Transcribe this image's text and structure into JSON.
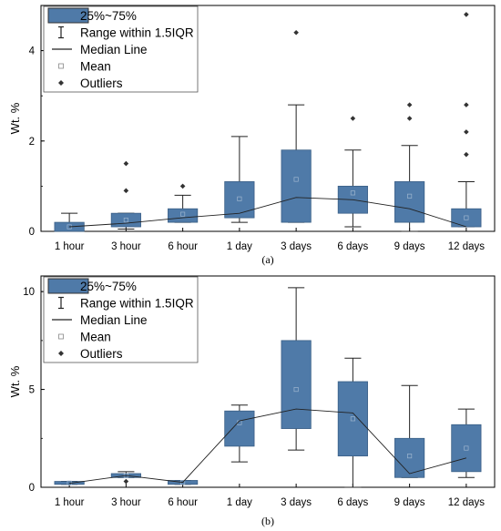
{
  "chart_data": [
    {
      "type": "box",
      "caption": "(a)",
      "ylabel": "Wt. %",
      "ylim": [
        0,
        5
      ],
      "yticks": [
        0,
        2,
        4
      ],
      "categories": [
        "1 hour",
        "3 hour",
        "6 hour",
        "1 day",
        "3 days",
        "6 days",
        "9 days",
        "12 days"
      ],
      "boxes": [
        {
          "q1": 0.0,
          "q3": 0.2,
          "whisker_low": 0.0,
          "whisker_high": 0.4,
          "median": 0.1,
          "mean": 0.1,
          "outliers": []
        },
        {
          "q1": 0.1,
          "q3": 0.4,
          "whisker_low": 0.05,
          "whisker_high": 0.4,
          "median": 0.18,
          "mean": 0.25,
          "outliers": [
            0.9,
            1.5
          ]
        },
        {
          "q1": 0.2,
          "q3": 0.5,
          "whisker_low": 0.2,
          "whisker_high": 0.8,
          "median": 0.3,
          "mean": 0.38,
          "outliers": [
            1.0
          ]
        },
        {
          "q1": 0.3,
          "q3": 1.1,
          "whisker_low": 0.2,
          "whisker_high": 2.1,
          "median": 0.4,
          "mean": 0.72,
          "outliers": []
        },
        {
          "q1": 0.2,
          "q3": 1.8,
          "whisker_low": 0.2,
          "whisker_high": 2.8,
          "median": 0.75,
          "mean": 1.15,
          "outliers": [
            4.4
          ]
        },
        {
          "q1": 0.4,
          "q3": 1.0,
          "whisker_low": 0.1,
          "whisker_high": 1.8,
          "median": 0.7,
          "mean": 0.85,
          "outliers": [
            2.5
          ]
        },
        {
          "q1": 0.2,
          "q3": 1.1,
          "whisker_low": 0.0,
          "whisker_high": 1.9,
          "median": 0.5,
          "mean": 0.78,
          "outliers": [
            2.5,
            2.8
          ]
        },
        {
          "q1": 0.1,
          "q3": 0.5,
          "whisker_low": 0.1,
          "whisker_high": 1.1,
          "median": 0.1,
          "mean": 0.3,
          "outliers": [
            1.7,
            2.2,
            2.8,
            4.8
          ]
        }
      ]
    },
    {
      "type": "box",
      "caption": "(b)",
      "ylabel": "Wt. %",
      "ylim": [
        0,
        10.8
      ],
      "yticks": [
        0,
        5,
        10
      ],
      "categories": [
        "1 hour",
        "3 hour",
        "6 hour",
        "1 day",
        "3 days",
        "6 days",
        "9 days",
        "12 days"
      ],
      "boxes": [
        {
          "q1": 0.15,
          "q3": 0.3,
          "whisker_low": 0.15,
          "whisker_high": 0.3,
          "median": 0.2,
          "mean": 0.22,
          "outliers": []
        },
        {
          "q1": 0.5,
          "q3": 0.7,
          "whisker_low": 0.5,
          "whisker_high": 0.8,
          "median": 0.6,
          "mean": 0.6,
          "outliers": [
            0.3
          ]
        },
        {
          "q1": 0.15,
          "q3": 0.35,
          "whisker_low": 0.15,
          "whisker_high": 0.35,
          "median": 0.25,
          "mean": 0.25,
          "outliers": []
        },
        {
          "q1": 2.1,
          "q3": 3.9,
          "whisker_low": 1.3,
          "whisker_high": 4.2,
          "median": 3.4,
          "mean": 3.3,
          "outliers": []
        },
        {
          "q1": 3.0,
          "q3": 7.5,
          "whisker_low": 1.9,
          "whisker_high": 10.2,
          "median": 4.0,
          "mean": 5.0,
          "outliers": []
        },
        {
          "q1": 1.6,
          "q3": 5.4,
          "whisker_low": 0.0,
          "whisker_high": 6.6,
          "median": 3.8,
          "mean": 3.5,
          "outliers": []
        },
        {
          "q1": 0.5,
          "q3": 2.5,
          "whisker_low": 0.5,
          "whisker_high": 5.2,
          "median": 0.7,
          "mean": 1.6,
          "outliers": []
        },
        {
          "q1": 0.8,
          "q3": 3.2,
          "whisker_low": 0.5,
          "whisker_high": 4.0,
          "median": 1.5,
          "mean": 2.0,
          "outliers": []
        }
      ]
    }
  ],
  "legend": [
    {
      "label": "25%~75%",
      "marker": "box"
    },
    {
      "label": "Range within 1.5IQR",
      "marker": "whisker"
    },
    {
      "label": "Median Line",
      "marker": "line"
    },
    {
      "label": "Mean",
      "marker": "square"
    },
    {
      "label": "Outliers",
      "marker": "diamond"
    }
  ],
  "colors": {
    "box_fill": "#4f7aa8",
    "box_stroke": "#3a5f86",
    "whisker": "#222222",
    "median_line": "#222222",
    "mean_marker": "#9fb6cf",
    "outlier": "#333333"
  }
}
